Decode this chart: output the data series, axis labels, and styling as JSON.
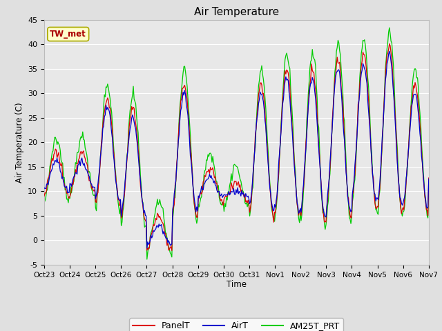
{
  "title": "Air Temperature",
  "ylabel": "Air Temperature (C)",
  "xlabel": "Time",
  "ylim": [
    -5,
    45
  ],
  "fig_bg_color": "#e0e0e0",
  "plot_bg_color": "#e8e8e8",
  "grid_color": "#ffffff",
  "annotation_text": "TW_met",
  "annotation_bg": "#ffffcc",
  "annotation_border": "#aaaa00",
  "annotation_text_color": "#aa0000",
  "series": [
    "PanelT",
    "AirT",
    "AM25T_PRT"
  ],
  "series_colors": [
    "#dd0000",
    "#0000cc",
    "#00cc00"
  ],
  "xtick_labels": [
    "Oct 23",
    "Oct 24",
    "Oct 25",
    "Oct 26",
    "Oct 27",
    "Oct 28",
    "Oct 29",
    "Oct 30",
    "Oct 31",
    "Nov 1",
    "Nov 2",
    "Nov 3",
    "Nov 4",
    "Nov 5",
    "Nov 6",
    "Nov 7"
  ],
  "ytick_values": [
    -5,
    0,
    5,
    10,
    15,
    20,
    25,
    30,
    35,
    40,
    45
  ],
  "num_points": 480,
  "day_min": [
    9,
    10,
    7,
    4,
    -2,
    5,
    8,
    8,
    5,
    5,
    4,
    5,
    7,
    6,
    6,
    12
  ],
  "day_max": [
    18,
    18,
    29,
    27,
    5,
    32,
    15,
    12,
    32,
    35,
    35,
    37,
    38,
    40,
    32,
    14
  ]
}
